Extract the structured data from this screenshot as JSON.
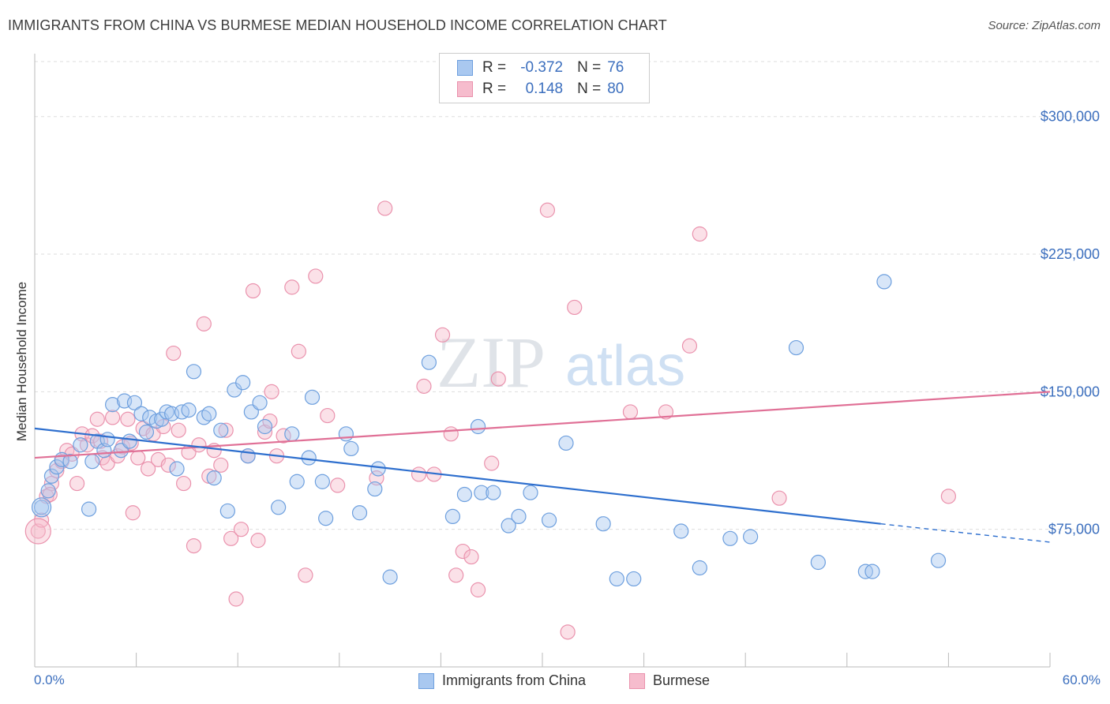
{
  "title": "IMMIGRANTS FROM CHINA VS BURMESE MEDIAN HOUSEHOLD INCOME CORRELATION CHART",
  "source": "Source: ZipAtlas.com",
  "watermark": {
    "zip": "ZIP",
    "atlas": "atlas"
  },
  "colors": {
    "blue_fill": "#a9c8f0",
    "blue_stroke": "#6d9fde",
    "blue_line": "#2e6fce",
    "pink_fill": "#f6bccd",
    "pink_stroke": "#ea92ad",
    "pink_line": "#e07096",
    "tick_text": "#3c6fbe",
    "grid": "#dddddd"
  },
  "legend_top": [
    {
      "series": "Immigrants from China",
      "r_label": "R =",
      "r": "-0.372",
      "n_label": "N =",
      "n": "76",
      "color": "blue"
    },
    {
      "series": "Burmese",
      "r_label": "R =",
      "r": "0.148",
      "n_label": "N =",
      "n": "80",
      "color": "pink"
    }
  ],
  "chart_data": {
    "type": "scatter",
    "title": "IMMIGRANTS FROM CHINA VS BURMESE MEDIAN HOUSEHOLD INCOME CORRELATION CHART",
    "xlabel": "",
    "ylabel": "Median Household Income",
    "xlim": [
      0,
      60
    ],
    "ylim": [
      0,
      330000
    ],
    "x_tick_labels": [
      "0.0%",
      "60.0%"
    ],
    "y_ticks": [
      75000,
      150000,
      225000,
      300000
    ],
    "y_tick_labels": [
      "$75,000",
      "$150,000",
      "$225,000",
      "$300,000"
    ],
    "grid": "horizontal dashed",
    "legend_position": "bottom",
    "series": [
      {
        "name": "Immigrants from China",
        "color": "blue",
        "points": [
          [
            0.4,
            87000
          ],
          [
            0.8,
            96000
          ],
          [
            1.0,
            104000
          ],
          [
            1.3,
            109000
          ],
          [
            1.6,
            113000
          ],
          [
            2.1,
            112000
          ],
          [
            2.7,
            121000
          ],
          [
            3.2,
            86000
          ],
          [
            3.4,
            112000
          ],
          [
            3.7,
            123000
          ],
          [
            4.1,
            118000
          ],
          [
            4.3,
            124000
          ],
          [
            4.6,
            143000
          ],
          [
            5.1,
            118000
          ],
          [
            5.3,
            145000
          ],
          [
            5.6,
            123000
          ],
          [
            5.9,
            144000
          ],
          [
            6.3,
            138000
          ],
          [
            6.6,
            128000
          ],
          [
            6.8,
            136000
          ],
          [
            7.2,
            134000
          ],
          [
            7.5,
            135000
          ],
          [
            7.8,
            139000
          ],
          [
            8.1,
            138000
          ],
          [
            8.4,
            108000
          ],
          [
            8.7,
            139000
          ],
          [
            9.1,
            140000
          ],
          [
            9.4,
            161000
          ],
          [
            10.0,
            136000
          ],
          [
            10.3,
            138000
          ],
          [
            10.6,
            103000
          ],
          [
            11.0,
            129000
          ],
          [
            11.4,
            85000
          ],
          [
            11.8,
            151000
          ],
          [
            12.3,
            155000
          ],
          [
            12.6,
            115000
          ],
          [
            12.8,
            139000
          ],
          [
            13.3,
            144000
          ],
          [
            13.6,
            131000
          ],
          [
            14.4,
            87000
          ],
          [
            15.2,
            127000
          ],
          [
            15.5,
            101000
          ],
          [
            16.2,
            114000
          ],
          [
            16.4,
            147000
          ],
          [
            17.0,
            101000
          ],
          [
            17.2,
            81000
          ],
          [
            18.4,
            127000
          ],
          [
            18.7,
            119000
          ],
          [
            19.2,
            84000
          ],
          [
            20.1,
            97000
          ],
          [
            20.3,
            108000
          ],
          [
            21.0,
            49000
          ],
          [
            23.3,
            166000
          ],
          [
            24.7,
            82000
          ],
          [
            25.4,
            94000
          ],
          [
            26.2,
            131000
          ],
          [
            26.4,
            95000
          ],
          [
            27.1,
            95000
          ],
          [
            28.0,
            77000
          ],
          [
            28.6,
            82000
          ],
          [
            29.3,
            95000
          ],
          [
            30.4,
            80000
          ],
          [
            31.4,
            122000
          ],
          [
            33.6,
            78000
          ],
          [
            34.4,
            48000
          ],
          [
            35.4,
            48000
          ],
          [
            38.2,
            74000
          ],
          [
            39.3,
            54000
          ],
          [
            41.1,
            70000
          ],
          [
            42.3,
            71000
          ],
          [
            45.0,
            174000
          ],
          [
            46.3,
            57000
          ],
          [
            49.1,
            52000
          ],
          [
            50.2,
            210000
          ],
          [
            53.4,
            58000
          ],
          [
            49.5,
            52000
          ]
        ]
      },
      {
        "name": "Burmese",
        "color": "pink",
        "points": [
          [
            0.2,
            74000
          ],
          [
            0.4,
            80000
          ],
          [
            0.7,
            93000
          ],
          [
            1.0,
            100000
          ],
          [
            1.3,
            107000
          ],
          [
            1.6,
            112000
          ],
          [
            1.9,
            118000
          ],
          [
            2.2,
            116000
          ],
          [
            2.5,
            100000
          ],
          [
            2.8,
            127000
          ],
          [
            3.1,
            121000
          ],
          [
            3.4,
            126000
          ],
          [
            3.7,
            135000
          ],
          [
            4.0,
            114000
          ],
          [
            4.3,
            111000
          ],
          [
            4.6,
            136000
          ],
          [
            4.9,
            115000
          ],
          [
            5.2,
            120000
          ],
          [
            5.5,
            135000
          ],
          [
            5.8,
            84000
          ],
          [
            6.1,
            114000
          ],
          [
            6.4,
            130000
          ],
          [
            6.7,
            108000
          ],
          [
            7.0,
            127000
          ],
          [
            7.3,
            113000
          ],
          [
            7.6,
            131000
          ],
          [
            7.9,
            110000
          ],
          [
            8.2,
            171000
          ],
          [
            8.5,
            129000
          ],
          [
            8.8,
            100000
          ],
          [
            9.1,
            117000
          ],
          [
            9.4,
            66000
          ],
          [
            9.7,
            121000
          ],
          [
            10.0,
            187000
          ],
          [
            10.3,
            104000
          ],
          [
            10.6,
            118000
          ],
          [
            11.0,
            110000
          ],
          [
            11.3,
            129000
          ],
          [
            11.6,
            70000
          ],
          [
            11.9,
            37000
          ],
          [
            12.2,
            75000
          ],
          [
            12.6,
            115000
          ],
          [
            12.9,
            205000
          ],
          [
            13.2,
            69000
          ],
          [
            13.6,
            128000
          ],
          [
            14.0,
            150000
          ],
          [
            14.3,
            115000
          ],
          [
            14.7,
            126000
          ],
          [
            15.2,
            207000
          ],
          [
            15.6,
            172000
          ],
          [
            16.0,
            50000
          ],
          [
            16.6,
            213000
          ],
          [
            17.3,
            137000
          ],
          [
            17.9,
            99000
          ],
          [
            20.7,
            250000
          ],
          [
            22.7,
            105000
          ],
          [
            23.0,
            153000
          ],
          [
            23.6,
            105000
          ],
          [
            24.1,
            181000
          ],
          [
            24.6,
            127000
          ],
          [
            25.3,
            63000
          ],
          [
            25.8,
            60000
          ],
          [
            26.2,
            42000
          ],
          [
            27.0,
            111000
          ],
          [
            27.4,
            157000
          ],
          [
            30.3,
            249000
          ],
          [
            31.5,
            19000
          ],
          [
            31.9,
            196000
          ],
          [
            37.3,
            139000
          ],
          [
            38.7,
            175000
          ],
          [
            39.3,
            236000
          ],
          [
            44.0,
            92000
          ],
          [
            54.0,
            93000
          ],
          [
            24.9,
            50000
          ],
          [
            35.2,
            139000
          ],
          [
            20.2,
            103000
          ],
          [
            13.9,
            134000
          ],
          [
            5.7,
            122000
          ],
          [
            0.9,
            94000
          ],
          [
            3.9,
            123000
          ]
        ]
      }
    ],
    "trend_lines": [
      {
        "series": "Immigrants from China",
        "solid": [
          [
            0,
            130000
          ],
          [
            50,
            78000
          ]
        ],
        "dashed": [
          [
            50,
            78000
          ],
          [
            60,
            68000
          ]
        ]
      },
      {
        "series": "Burmese",
        "solid": [
          [
            0,
            114000
          ],
          [
            60,
            150000
          ]
        ]
      }
    ]
  }
}
